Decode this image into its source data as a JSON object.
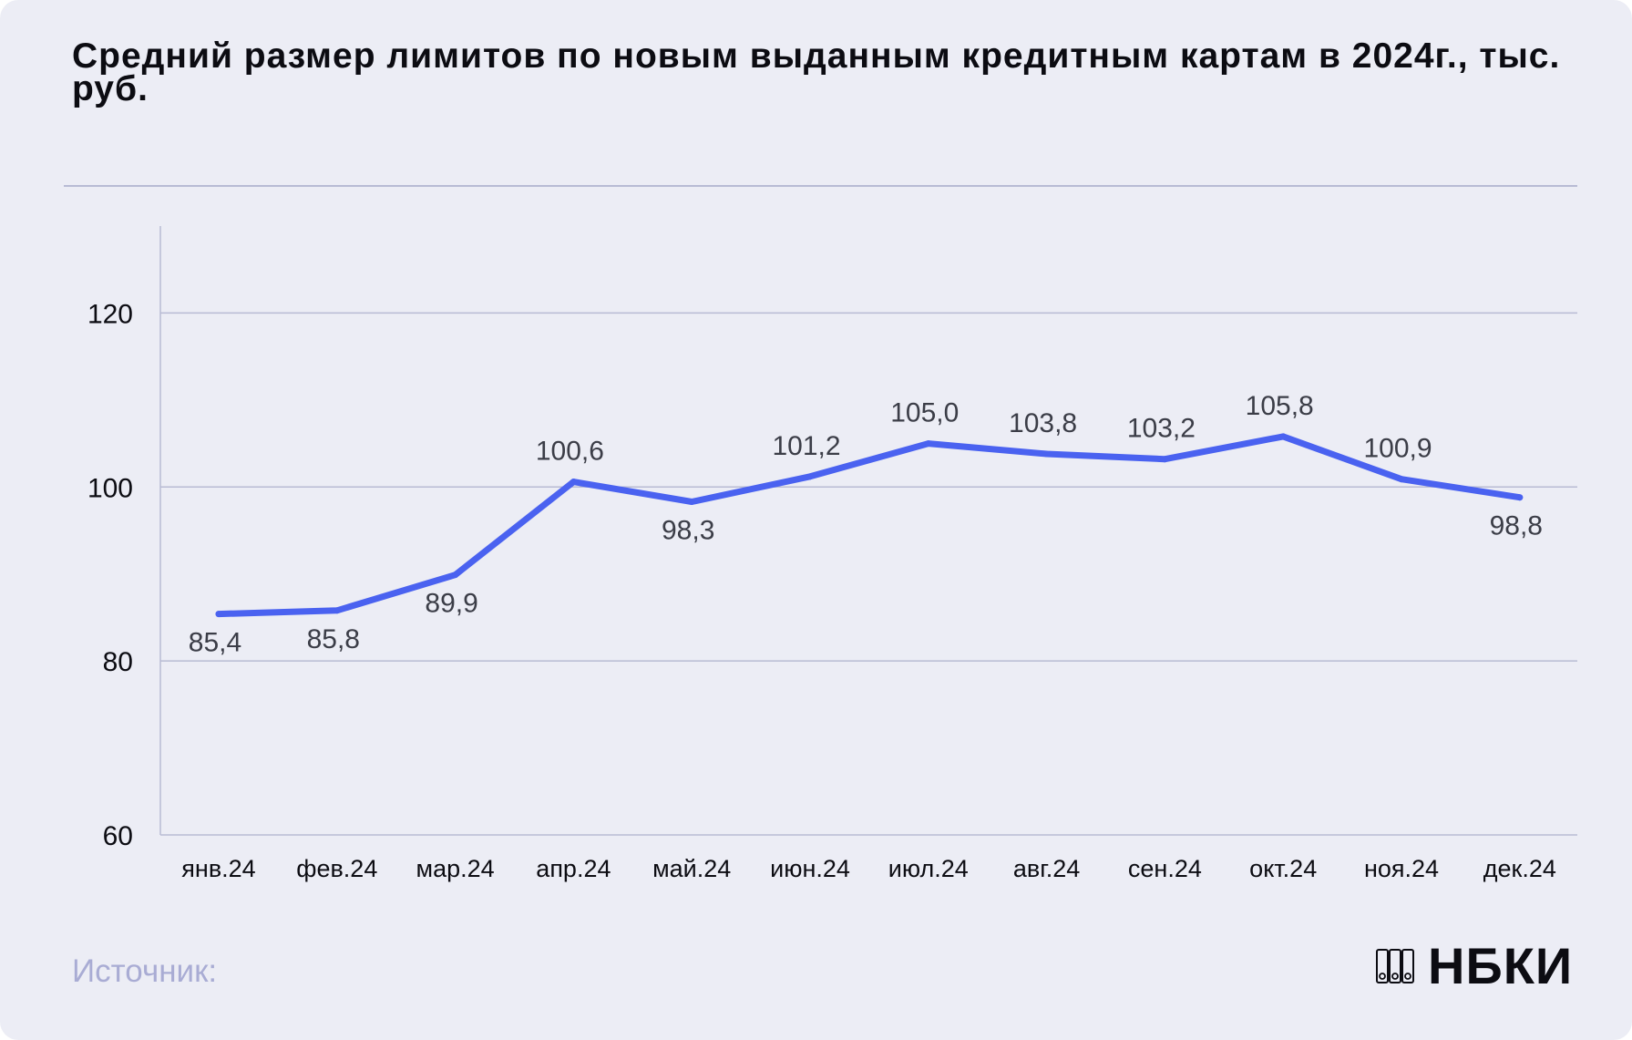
{
  "title": "Средний размер лимитов по новым выданным кредитным картам в 2024г., тыс. руб.",
  "source_label": "Источник:",
  "logo": {
    "text": "НБКИ",
    "icon": "nbki-logo-icon"
  },
  "colors": {
    "background": "#ecedf5",
    "line": "#4a62f0",
    "grid": "#b8bbd4",
    "text": "#0c0c12",
    "label": "#3b3d47",
    "source": "#a9acd4"
  },
  "chart_data": {
    "type": "line",
    "categories": [
      "янв.24",
      "фев.24",
      "мар.24",
      "апр.24",
      "май.24",
      "июн.24",
      "июл.24",
      "авг.24",
      "сен.24",
      "окт.24",
      "ноя.24",
      "дек.24"
    ],
    "values": [
      85.4,
      85.8,
      89.9,
      100.6,
      98.3,
      101.2,
      105.0,
      103.8,
      103.2,
      105.8,
      100.9,
      98.8
    ],
    "data_labels": [
      "85,4",
      "85,8",
      "89,9",
      "100,6",
      "98,3",
      "101,2",
      "105,0",
      "103,8",
      "103,2",
      "105,8",
      "100,9",
      "98,8"
    ],
    "label_position": [
      "below",
      "below",
      "below",
      "above",
      "below",
      "above",
      "above",
      "above",
      "above",
      "above",
      "above",
      "below"
    ],
    "yticks": [
      60,
      80,
      100,
      120
    ],
    "ylim": [
      60,
      130
    ],
    "grid": true,
    "legend": "none"
  }
}
